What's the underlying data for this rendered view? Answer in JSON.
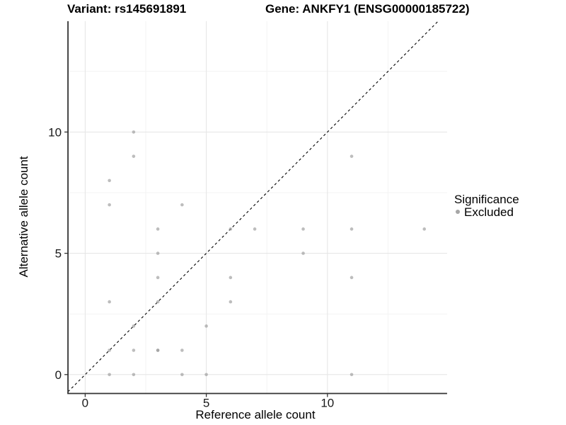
{
  "header": {
    "variant_title": "Variant: rs145691891",
    "gene_title": "Gene: ANKFY1 (ENSG00000185722)"
  },
  "axes": {
    "x_label": "Reference allele count",
    "y_label": "Alternative allele count"
  },
  "legend": {
    "title": "Significance",
    "items": [
      {
        "label": "Excluded",
        "color": "#a6a6a6"
      }
    ]
  },
  "chart_data": {
    "type": "scatter",
    "title_left": "Variant: rs145691891",
    "title_right": "Gene: ANKFY1 (ENSG00000185722)",
    "xlabel": "Reference allele count",
    "ylabel": "Alternative allele count",
    "xlim": [
      -0.71,
      14.94
    ],
    "ylim": [
      -0.78,
      14.57
    ],
    "x_ticks": [
      0,
      5,
      10
    ],
    "y_ticks": [
      0,
      5,
      10
    ],
    "x_minor_gridlines": [
      2.5,
      7.5,
      12.5
    ],
    "y_minor_gridlines": [
      2.5,
      7.5,
      12.5
    ],
    "grid": true,
    "legend_position": "right",
    "reference_line": {
      "type": "identity",
      "style": "dashed",
      "color": "#000000"
    },
    "series": [
      {
        "name": "Excluded",
        "color": "#999999",
        "opacity": 0.65,
        "points": [
          [
            1,
            0
          ],
          [
            1,
            1
          ],
          [
            1,
            3
          ],
          [
            1,
            7
          ],
          [
            1,
            8
          ],
          [
            2,
            0
          ],
          [
            2,
            1
          ],
          [
            2,
            2
          ],
          [
            2,
            9
          ],
          [
            2,
            10
          ],
          [
            3,
            1
          ],
          [
            3,
            1
          ],
          [
            3,
            3
          ],
          [
            3,
            4
          ],
          [
            3,
            5
          ],
          [
            3,
            6
          ],
          [
            4,
            0
          ],
          [
            4,
            1
          ],
          [
            4,
            7
          ],
          [
            5,
            0
          ],
          [
            5,
            2
          ],
          [
            6,
            3
          ],
          [
            6,
            4
          ],
          [
            6,
            6
          ],
          [
            7,
            6
          ],
          [
            9,
            5
          ],
          [
            9,
            6
          ],
          [
            11,
            0
          ],
          [
            11,
            4
          ],
          [
            11,
            6
          ],
          [
            11,
            9
          ],
          [
            14,
            6
          ]
        ]
      }
    ],
    "style": {
      "major_grid_color": "#e6e6e6",
      "minor_grid_color": "#f3f3f3",
      "axis_line_color": "#333333",
      "point_radius": 2.3
    }
  }
}
